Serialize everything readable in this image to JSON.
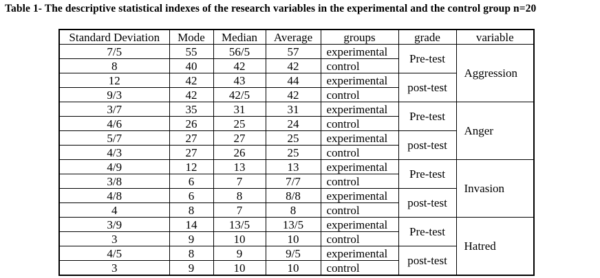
{
  "title": "Table 1- The descriptive statistical indexes of the research variables in the experimental and the control group n=20",
  "table": {
    "columns": [
      "Standard Deviation",
      "Mode",
      "Median",
      "Average",
      "groups",
      "grade",
      "variable"
    ],
    "variables": [
      {
        "name": "Aggression",
        "grades": [
          {
            "name": "Pre-test",
            "rows": [
              {
                "sd": "7/5",
                "mode": "55",
                "median": "56/5",
                "average": "57",
                "group": "experimental"
              },
              {
                "sd": "8",
                "mode": "40",
                "median": "42",
                "average": "42",
                "group": "control"
              }
            ]
          },
          {
            "name": "post-test",
            "rows": [
              {
                "sd": "12",
                "mode": "42",
                "median": "43",
                "average": "44",
                "group": "experimental"
              },
              {
                "sd": "9/3",
                "mode": "42",
                "median": "42/5",
                "average": "42",
                "group": "control"
              }
            ]
          }
        ]
      },
      {
        "name": "Anger",
        "grades": [
          {
            "name": "Pre-test",
            "rows": [
              {
                "sd": "3/7",
                "mode": "35",
                "median": "31",
                "average": "31",
                "group": "experimental"
              },
              {
                "sd": "4/6",
                "mode": "26",
                "median": "25",
                "average": "24",
                "group": "control"
              }
            ]
          },
          {
            "name": "post-test",
            "rows": [
              {
                "sd": "5/7",
                "mode": "27",
                "median": "27",
                "average": "25",
                "group": "experimental"
              },
              {
                "sd": "4/3",
                "mode": "27",
                "median": "26",
                "average": "25",
                "group": "control"
              }
            ]
          }
        ]
      },
      {
        "name": "Invasion",
        "grades": [
          {
            "name": "Pre-test",
            "rows": [
              {
                "sd": "4/9",
                "mode": "12",
                "median": "13",
                "average": "13",
                "group": "experimental"
              },
              {
                "sd": "3/8",
                "mode": "6",
                "median": "7",
                "average": "7/7",
                "group": "control"
              }
            ]
          },
          {
            "name": "post-test",
            "rows": [
              {
                "sd": "4/8",
                "mode": "6",
                "median": "8",
                "average": "8/8",
                "group": "experimental"
              },
              {
                "sd": "4",
                "mode": "8",
                "median": "7",
                "average": "8",
                "group": "control"
              }
            ]
          }
        ]
      },
      {
        "name": "Hatred",
        "grades": [
          {
            "name": "Pre-test",
            "rows": [
              {
                "sd": "3/9",
                "mode": "14",
                "median": "13/5",
                "average": "13/5",
                "group": "experimental"
              },
              {
                "sd": "3",
                "mode": "9",
                "median": "10",
                "average": "10",
                "group": "control"
              }
            ]
          },
          {
            "name": "post-test",
            "rows": [
              {
                "sd": "4/5",
                "mode": "8",
                "median": "9",
                "average": "9/5",
                "group": "experimental"
              },
              {
                "sd": "3",
                "mode": "9",
                "median": "10",
                "average": "10",
                "group": "control"
              }
            ]
          }
        ]
      }
    ]
  }
}
